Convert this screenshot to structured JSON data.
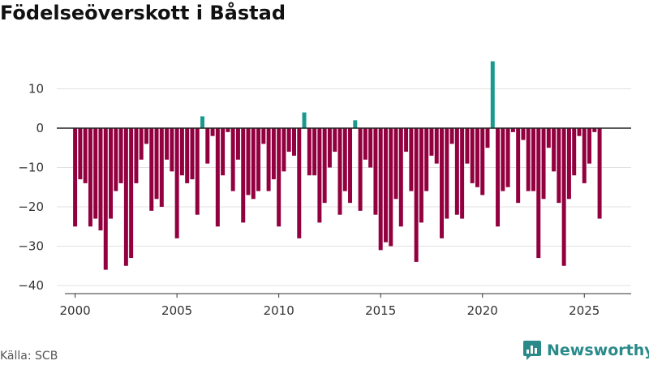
{
  "title": "Födelseöverskott i Båstad",
  "source": "Källa: SCB",
  "brand": "Newsworthy",
  "colors": {
    "negative": "#93003f",
    "positive": "#1a9a8e",
    "grid": "#e1e1e1",
    "zero": "#222222",
    "brand": "#2a8a8a"
  },
  "chart_data": {
    "type": "bar",
    "title": "Födelseöverskott i Båstad",
    "xlabel": "",
    "ylabel": "",
    "x_start": 2000.0,
    "period_step": 0.25,
    "xlim": [
      1999.1,
      2027.3
    ],
    "ylim": [
      -42,
      20
    ],
    "y_ticks": [
      10,
      0,
      -10,
      -20,
      -30,
      -40
    ],
    "x_ticks": [
      2000,
      2005,
      2010,
      2015,
      2020,
      2025
    ],
    "grid": true,
    "legend": "none",
    "values": [
      -25,
      -13,
      -14,
      -25,
      -23,
      -26,
      -36,
      -23,
      -16,
      -14,
      -35,
      -33,
      -14,
      -8,
      -4,
      -21,
      -18,
      -20,
      -8,
      -11,
      -28,
      -12,
      -14,
      -13,
      -22,
      3,
      -9,
      -2,
      -25,
      -12,
      -1,
      -16,
      -8,
      -24,
      -17,
      -18,
      -16,
      -4,
      -16,
      -13,
      -25,
      -11,
      -6,
      -7,
      -28,
      4,
      -12,
      -12,
      -24,
      -19,
      -10,
      -6,
      -22,
      -16,
      -19,
      2,
      -21,
      -8,
      -10,
      -22,
      -31,
      -29,
      -30,
      -18,
      -25,
      -6,
      -16,
      -34,
      -24,
      -16,
      -7,
      -9,
      -28,
      -23,
      -4,
      -22,
      -23,
      -9,
      -14,
      -15,
      -17,
      -5,
      17,
      -25,
      -16,
      -15,
      -1,
      -19,
      -3,
      -16,
      -16,
      -33,
      -18,
      -5,
      -11,
      -19,
      -35,
      -18,
      -12,
      -2,
      -14,
      -9,
      -1,
      -23
    ]
  }
}
